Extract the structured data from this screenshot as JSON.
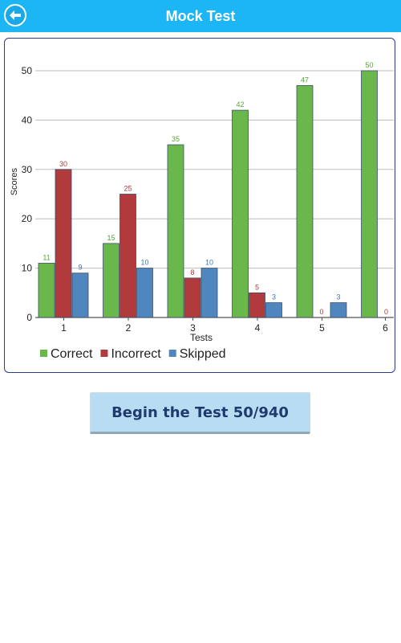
{
  "header": {
    "title": "Mock Test",
    "back_icon": "back-arrow-icon",
    "bar_color": "#1cb6f5"
  },
  "begin_button": {
    "label": "Begin the Test 50/940"
  },
  "chart_data": {
    "type": "bar",
    "xlabel": "Tests",
    "ylabel": "Scores",
    "ylim": [
      0,
      55
    ],
    "yticks": [
      0,
      10,
      20,
      30,
      40,
      50
    ],
    "categories": [
      "1",
      "2",
      "3",
      "4",
      "5",
      "6"
    ],
    "grid": true,
    "legend_position": "bottom-left",
    "series": [
      {
        "name": "Correct",
        "color": "#6ab84c",
        "label_color": "#5aa33b",
        "values": [
          11,
          15,
          35,
          42,
          47,
          50
        ]
      },
      {
        "name": "Incorrect",
        "color": "#b13a3d",
        "label_color": "#b13a3d",
        "values": [
          30,
          25,
          8,
          5,
          0,
          0
        ]
      },
      {
        "name": "Skipped",
        "color": "#4f86bd",
        "label_color": "#3f77ae",
        "values": [
          9,
          10,
          10,
          3,
          3,
          null
        ]
      }
    ]
  }
}
